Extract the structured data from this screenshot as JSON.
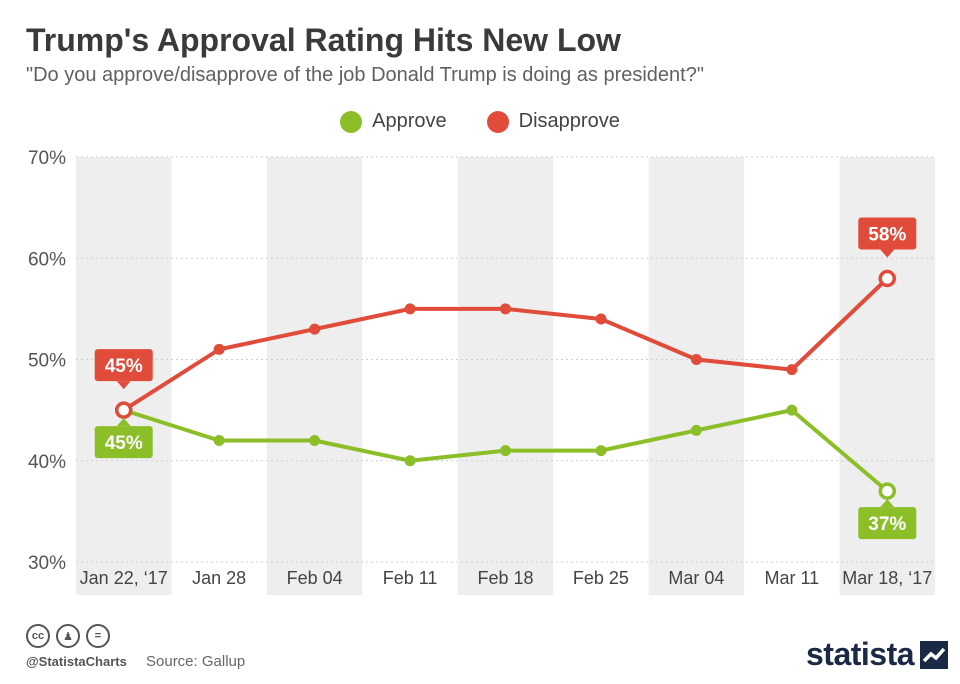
{
  "header": {
    "title": "Trump's Approval Rating Hits New Low",
    "subtitle": "\"Do you approve/disapprove of the job Donald Trump is doing as president?\""
  },
  "colors": {
    "approve": "#8cbe28",
    "disapprove": "#e04b3a",
    "band": "#eeeeee"
  },
  "chart_data": {
    "type": "line",
    "categories": [
      "Jan 22, ‘17",
      "Jan 28",
      "Feb 04",
      "Feb 11",
      "Feb 18",
      "Feb 25",
      "Mar 04",
      "Mar 11",
      "Mar 18, ‘17"
    ],
    "series": [
      {
        "name": "Approve",
        "values": [
          45,
          42,
          42,
          40,
          41,
          41,
          43,
          45,
          37
        ]
      },
      {
        "name": "Disapprove",
        "values": [
          45,
          51,
          53,
          55,
          55,
          54,
          50,
          49,
          58
        ]
      }
    ],
    "y_ticks": [
      "70%",
      "60%",
      "50%",
      "40%",
      "30%"
    ],
    "ylim": [
      30,
      70
    ],
    "annotations": [
      {
        "series": "Disapprove",
        "index": 0,
        "text": "45%"
      },
      {
        "series": "Approve",
        "index": 0,
        "text": "45%"
      },
      {
        "series": "Disapprove",
        "index": 8,
        "text": "58%"
      },
      {
        "series": "Approve",
        "index": 8,
        "text": "37%"
      }
    ],
    "legend_position": "top-center",
    "grid": true
  },
  "footer": {
    "handle": "@StatistaCharts",
    "source": "Source: Gallup",
    "brand": "statista",
    "license_icons": [
      "cc",
      "by",
      "nd"
    ]
  }
}
